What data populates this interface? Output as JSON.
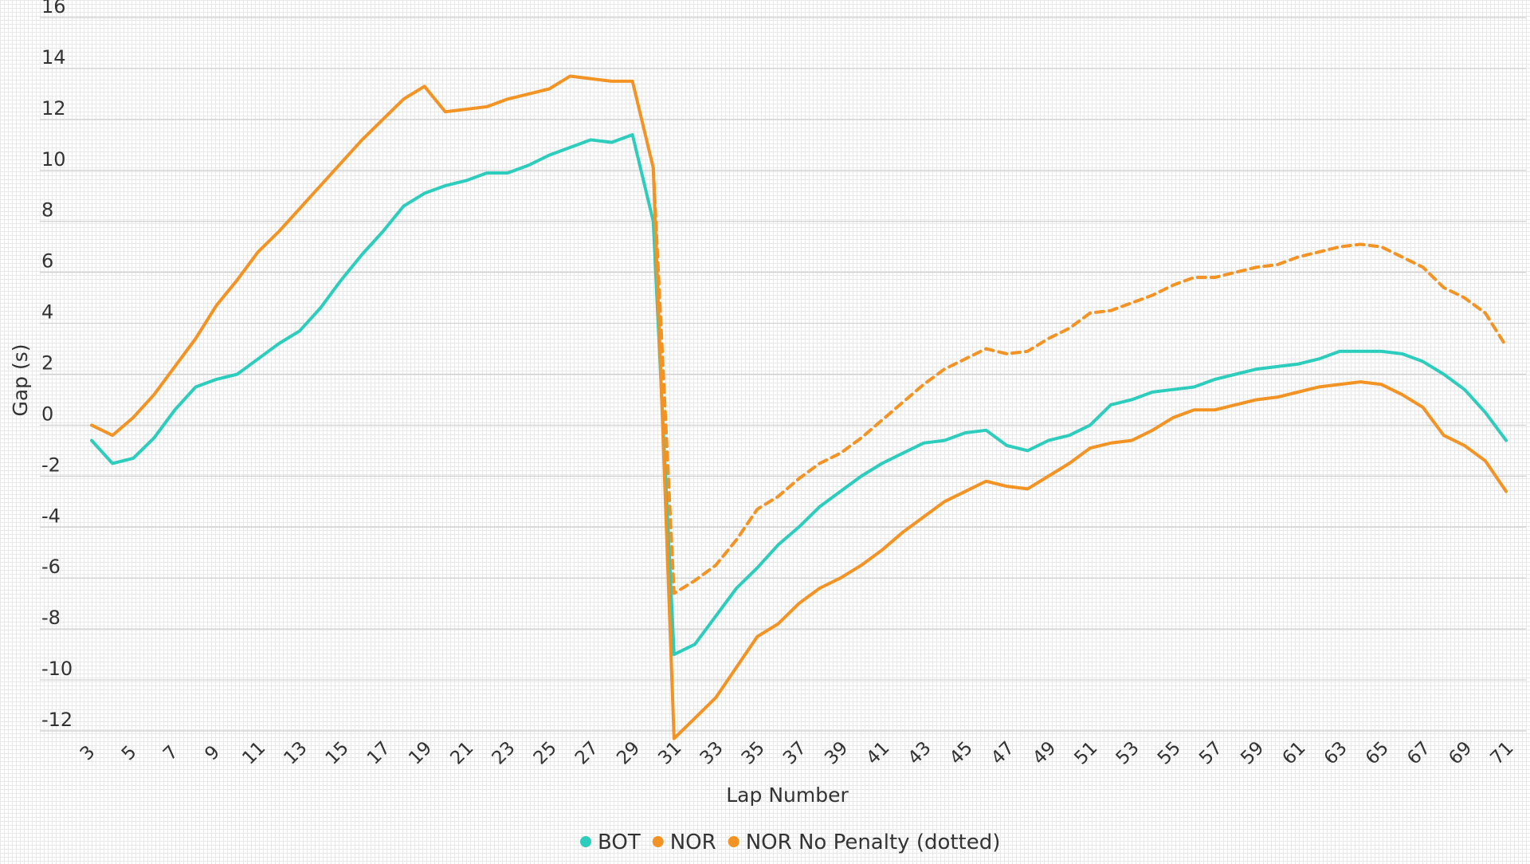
{
  "chart_data": {
    "type": "line",
    "xlabel": "Lap Number",
    "ylabel": "Gap (s)",
    "ylim": [
      -12,
      16
    ],
    "yticks": [
      "16",
      "14",
      "12",
      "10",
      "8",
      "6",
      "4",
      "2",
      "0",
      "-2",
      "-4",
      "-6",
      "-8",
      "-10",
      "-12"
    ],
    "x": [
      3,
      4,
      5,
      6,
      7,
      8,
      9,
      10,
      11,
      12,
      13,
      14,
      15,
      16,
      17,
      18,
      19,
      20,
      21,
      22,
      23,
      24,
      25,
      26,
      27,
      28,
      29,
      30,
      31,
      32,
      33,
      34,
      35,
      36,
      37,
      38,
      39,
      40,
      41,
      42,
      43,
      44,
      45,
      46,
      47,
      48,
      49,
      50,
      51,
      52,
      53,
      54,
      55,
      56,
      57,
      58,
      59,
      60,
      61,
      62,
      63,
      64,
      65,
      66,
      67,
      68,
      69,
      70,
      71
    ],
    "xticks": [
      "3",
      "5",
      "7",
      "9",
      "11",
      "13",
      "15",
      "17",
      "19",
      "21",
      "23",
      "25",
      "27",
      "29",
      "31",
      "33",
      "35",
      "37",
      "39",
      "41",
      "43",
      "45",
      "47",
      "49",
      "51",
      "53",
      "55",
      "57",
      "59",
      "61",
      "63",
      "65",
      "67",
      "69",
      "71"
    ],
    "grid": true,
    "legend_position": "bottom-center",
    "series": [
      {
        "name": "BOT",
        "color": "#2ccdbd",
        "style": "solid",
        "values": [
          -0.6,
          -1.5,
          -1.3,
          -0.5,
          0.6,
          1.5,
          1.8,
          2.0,
          2.6,
          3.2,
          3.7,
          4.6,
          5.7,
          6.7,
          7.6,
          8.6,
          9.1,
          9.4,
          9.6,
          9.9,
          9.9,
          10.2,
          10.6,
          10.9,
          11.2,
          11.1,
          11.4,
          8.0,
          -9.0,
          -8.6,
          -7.5,
          -6.4,
          -5.6,
          -4.7,
          -4.0,
          -3.2,
          -2.6,
          -2.0,
          -1.5,
          -1.1,
          -0.7,
          -0.6,
          -0.3,
          -0.2,
          -0.8,
          -1.0,
          -0.6,
          -0.4,
          0.0,
          0.8,
          1.0,
          1.3,
          1.4,
          1.5,
          1.8,
          2.0,
          2.2,
          2.3,
          2.4,
          2.6,
          2.9,
          2.9,
          2.9,
          2.8,
          2.5,
          2.0,
          1.4,
          0.5,
          -0.6
        ]
      },
      {
        "name": "NOR",
        "color": "#f39323",
        "style": "solid",
        "values": [
          0.0,
          -0.4,
          0.3,
          1.2,
          2.3,
          3.4,
          4.7,
          5.7,
          6.8,
          7.6,
          8.5,
          9.4,
          10.3,
          11.2,
          12.0,
          12.8,
          13.3,
          12.3,
          12.4,
          12.5,
          12.8,
          13.0,
          13.2,
          13.7,
          13.6,
          13.5,
          13.5,
          10.1,
          -12.3,
          -11.5,
          -10.7,
          -9.5,
          -8.3,
          -7.8,
          -7.0,
          -6.4,
          -6.0,
          -5.5,
          -4.9,
          -4.2,
          -3.6,
          -3.0,
          -2.6,
          -2.2,
          -2.4,
          -2.5,
          -2.0,
          -1.5,
          -0.9,
          -0.7,
          -0.6,
          -0.2,
          0.3,
          0.6,
          0.6,
          0.8,
          1.0,
          1.1,
          1.3,
          1.5,
          1.6,
          1.7,
          1.6,
          1.2,
          0.7,
          -0.4,
          -0.8,
          -1.4,
          -2.6
        ]
      },
      {
        "name": "NOR No Penalty (dotted)",
        "color": "#f39323",
        "style": "dashed",
        "values": [
          null,
          null,
          null,
          null,
          null,
          null,
          null,
          null,
          null,
          null,
          null,
          null,
          null,
          null,
          null,
          null,
          null,
          null,
          null,
          null,
          null,
          null,
          null,
          null,
          null,
          null,
          null,
          10.1,
          -6.6,
          -6.1,
          -5.5,
          -4.5,
          -3.3,
          -2.8,
          -2.1,
          -1.5,
          -1.1,
          -0.5,
          0.2,
          0.9,
          1.6,
          2.2,
          2.6,
          3.0,
          2.8,
          2.9,
          3.4,
          3.8,
          4.4,
          4.5,
          4.8,
          5.1,
          5.5,
          5.8,
          5.8,
          6.0,
          6.2,
          6.3,
          6.6,
          6.8,
          7.0,
          7.1,
          7.0,
          6.6,
          6.2,
          5.4,
          5.0,
          4.4,
          3.1
        ]
      }
    ]
  }
}
